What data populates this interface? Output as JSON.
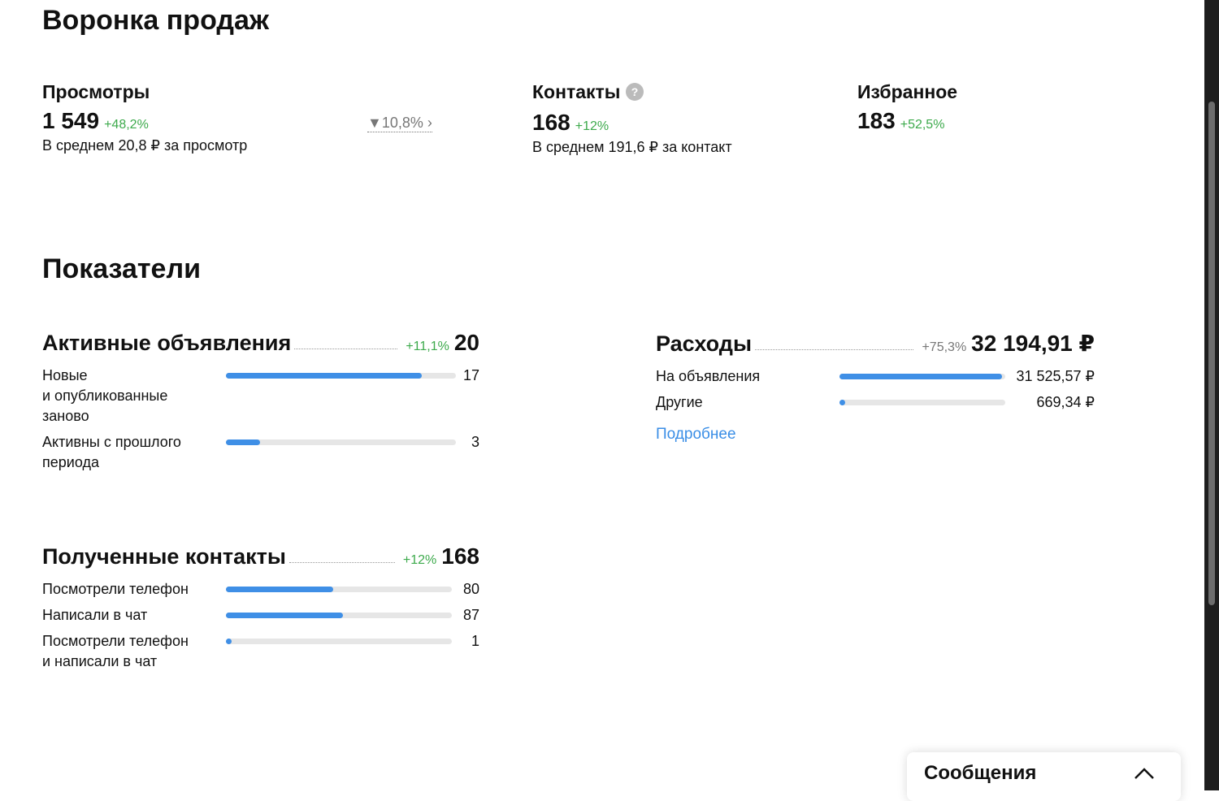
{
  "funnel": {
    "title": "Воронка продаж",
    "views": {
      "title": "Просмотры",
      "value": {
        "value": 1549,
        "label": "1 549"
      },
      "change": "+48,2%",
      "conversion": "10,8%",
      "average": "В среднем 20,8 ₽ за просмотр"
    },
    "contacts": {
      "title": "Контакты",
      "value": 168,
      "change": "+12%",
      "average": "В среднем 191,6 ₽ за контакт"
    },
    "favorites": {
      "title": "Избранное",
      "value": 183,
      "change": "+52,5%"
    }
  },
  "metrics": {
    "title": "Показатели",
    "active_ads": {
      "title": "Активные объявления",
      "change": "+11,1%",
      "total": 20,
      "rows": [
        {
          "label": "Новые\nи опубликованные\nзаново",
          "value": 17
        },
        {
          "label": "Активны с прошлого\nпериода",
          "value": 3
        }
      ]
    },
    "received_contacts": {
      "title": "Полученные контакты",
      "change": "+12%",
      "total": 168,
      "rows": [
        {
          "label": "Посмотрели телефон",
          "value": 80
        },
        {
          "label": "Написали в чат",
          "value": 87
        },
        {
          "label": "Посмотрели телефон\nи написали в чат",
          "value": 1
        }
      ]
    },
    "expenses": {
      "title": "Расходы",
      "change": "+75,3%",
      "total": {
        "value": 32194.91,
        "label": "32 194,91 ₽"
      },
      "rows": [
        {
          "label": "На объявления",
          "value": {
            "value": 31525.57,
            "label": "31 525,57 ₽"
          }
        },
        {
          "label": "Другие",
          "value": {
            "value": 669.34,
            "label": "669,34 ₽"
          }
        }
      ],
      "more": "Подробнее"
    }
  },
  "messages": {
    "title": "Сообщения"
  }
}
